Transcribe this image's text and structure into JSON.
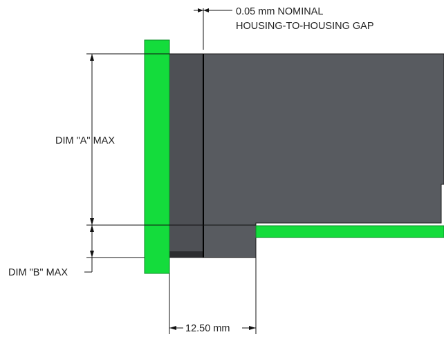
{
  "annotations": {
    "gap_value": "0.05 mm NOMINAL",
    "gap_desc": "HOUSING-TO-HOUSING GAP",
    "dim_a": "DIM \"A\" MAX",
    "dim_b": "DIM \"B\" MAX",
    "dim_width": "12.50 mm"
  },
  "colors": {
    "pcb": "#14dc3c",
    "pcb_edge": "#0a8a25",
    "housing_main": "#585b60",
    "housing_front": "#4e5055",
    "housing_edge": "#1a1a1a",
    "line": "#111111"
  }
}
